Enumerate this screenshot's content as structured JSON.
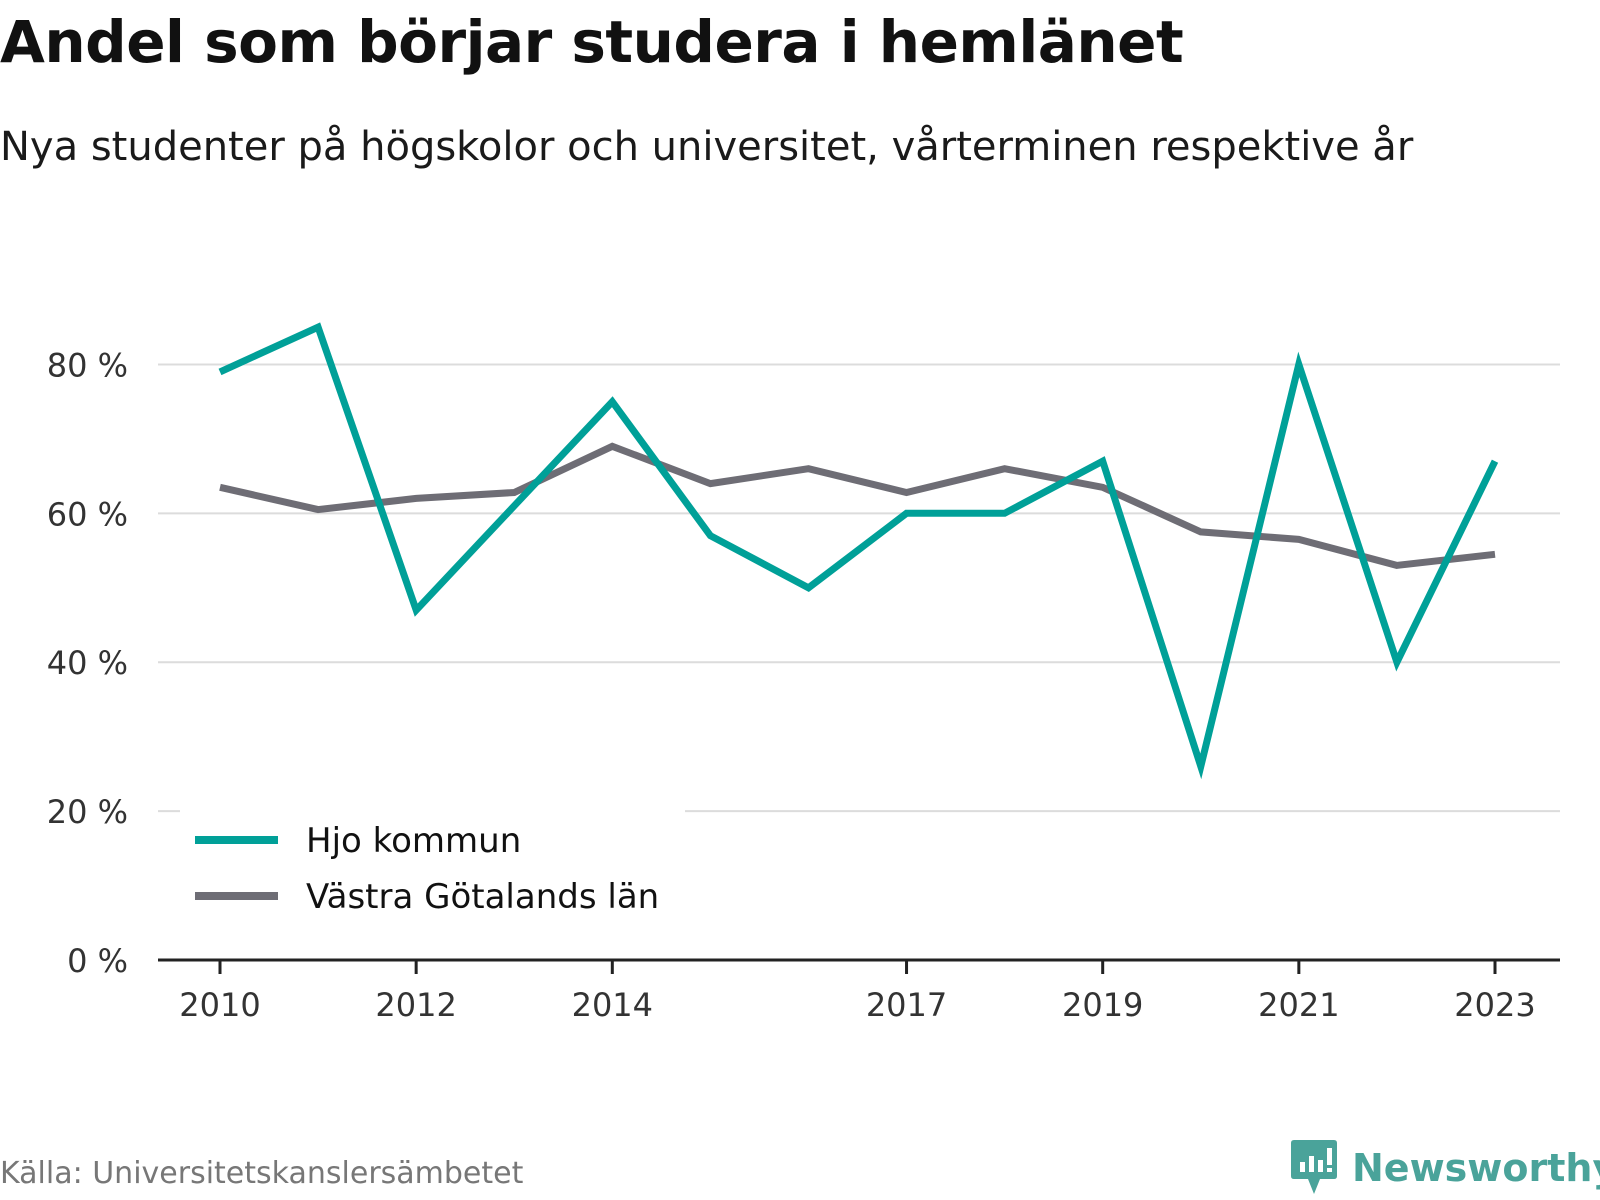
{
  "title": "Andel som börjar studera i hemlänet",
  "subtitle": "Nya studenter på högskolor och universitet, vårterminen respektive år",
  "source": "Källa: Universitetskanslersämbetet",
  "brand": {
    "name": "Newsworthy",
    "icon": "newsworthy-logo-icon",
    "color": "#4aa39a"
  },
  "chart_data": {
    "type": "line",
    "x": [
      2010,
      2011,
      2012,
      2013,
      2014,
      2015,
      2016,
      2017,
      2018,
      2019,
      2020,
      2021,
      2022,
      2023
    ],
    "x_tick_labels": [
      "2010",
      "2012",
      "2014",
      "2017",
      "2019",
      "2021",
      "2023"
    ],
    "x_ticks": [
      2010,
      2012,
      2014,
      2017,
      2019,
      2021,
      2023
    ],
    "y_ticks": [
      0,
      20,
      40,
      60,
      80
    ],
    "y_tick_labels": [
      "0 %",
      "20 %",
      "40 %",
      "60 %",
      "80 %"
    ],
    "ylim": [
      0,
      90
    ],
    "grid": true,
    "legend_position": "bottom-left",
    "series": [
      {
        "name": "Hjo kommun",
        "color": "#00a098",
        "values": [
          79,
          85,
          47,
          61,
          75,
          57,
          50,
          60,
          60,
          67,
          26,
          80,
          40,
          67
        ]
      },
      {
        "name": "Västra Götalands län",
        "color": "#6e6d75",
        "values": [
          63.5,
          60.5,
          62,
          62.8,
          69,
          64,
          66,
          62.8,
          66,
          63.5,
          57.5,
          56.5,
          53,
          54.5
        ]
      }
    ]
  }
}
